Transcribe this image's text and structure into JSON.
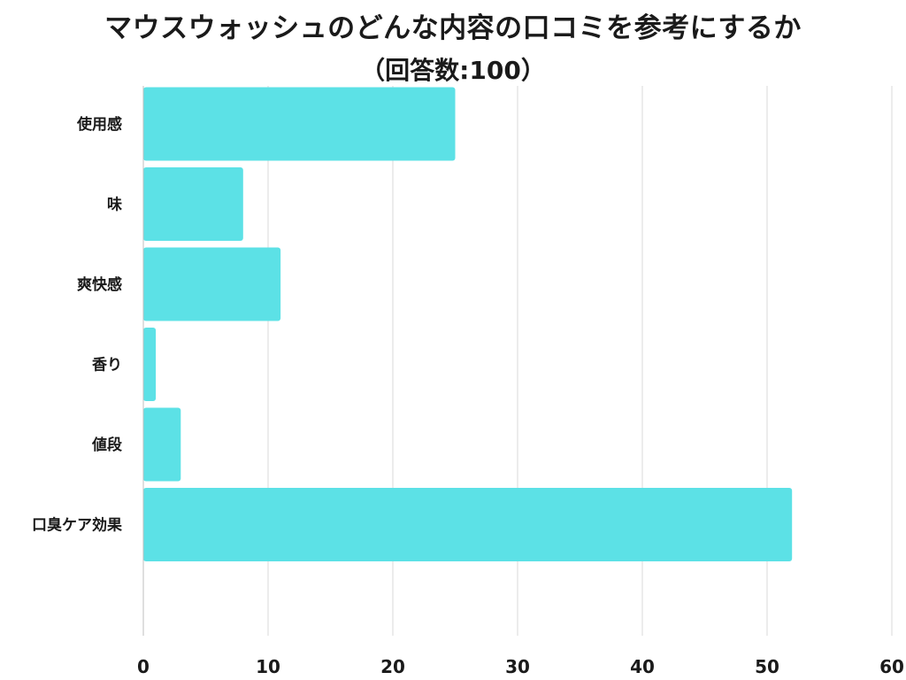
{
  "chart_data": {
    "type": "bar",
    "orientation": "horizontal",
    "title": "マウスウォッシュのどんな内容の口コミを参考にするか",
    "subtitle": "（回答数:100）",
    "categories": [
      "使用感",
      "味",
      "爽快感",
      "香り",
      "値段",
      "口臭ケア効果"
    ],
    "values": [
      25,
      8,
      11,
      1,
      3,
      52
    ],
    "xlim": [
      0,
      60
    ],
    "xticks": [
      "0",
      "10",
      "20",
      "30",
      "40",
      "50",
      "60"
    ],
    "grid": true,
    "legend": "none",
    "bar_color": "#5ce1e6",
    "grid_color": "#d9d9d9"
  }
}
